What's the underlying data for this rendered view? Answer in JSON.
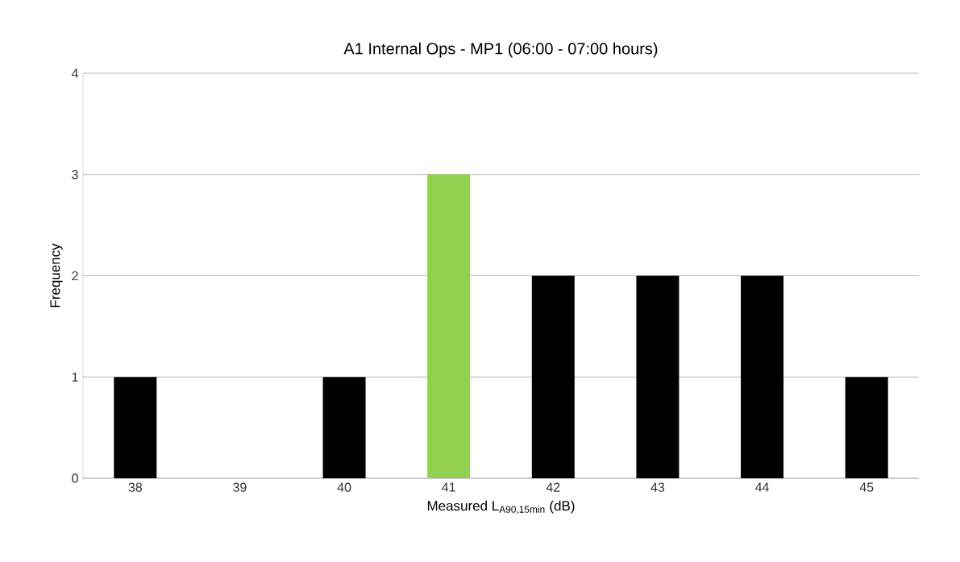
{
  "chart_data": {
    "type": "bar",
    "title": "A1 Internal Ops - MP1 (06:00 - 07:00 hours)",
    "xlabel": "Measured L$_{A90,15min}$ (dB)",
    "ylabel": "Frequency",
    "categories": [
      "38",
      "39",
      "40",
      "41",
      "42",
      "43",
      "44",
      "45"
    ],
    "values": [
      1,
      0,
      1,
      3,
      2,
      2,
      2,
      1
    ],
    "colors": [
      "#000000",
      "#000000",
      "#000000",
      "#92d050",
      "#000000",
      "#000000",
      "#000000",
      "#000000"
    ],
    "ylim": [
      0,
      4
    ],
    "yticks": [
      0,
      1,
      2,
      3,
      4
    ],
    "grid": "y"
  }
}
